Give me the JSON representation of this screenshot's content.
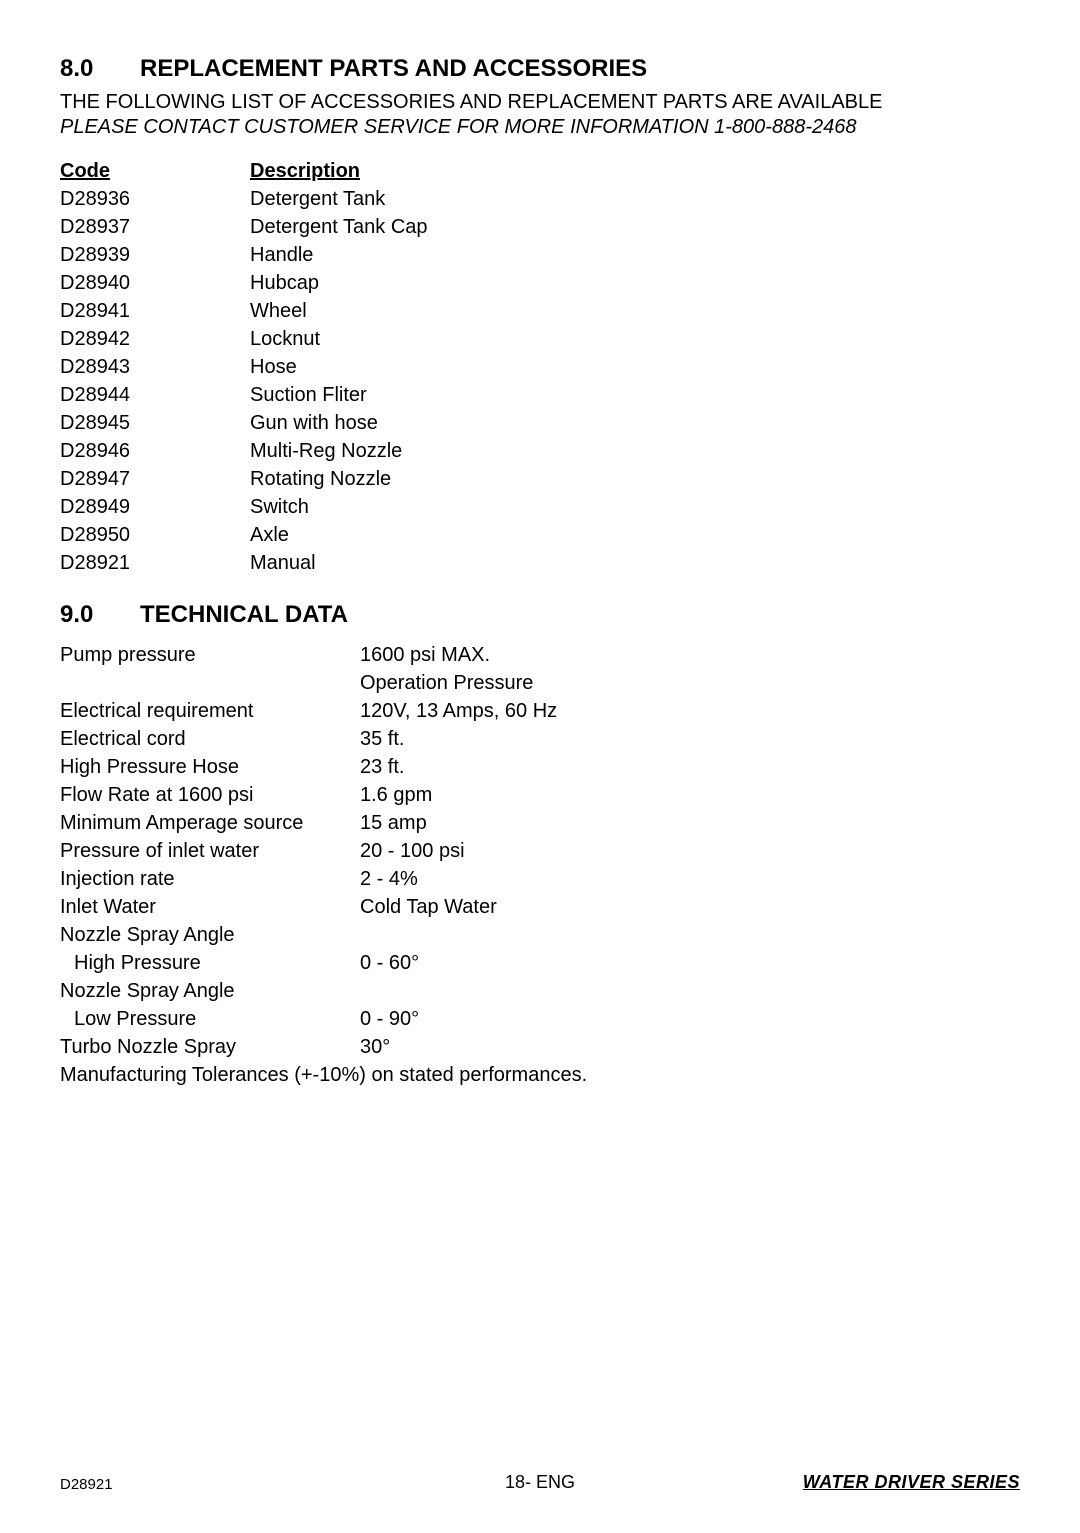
{
  "section8": {
    "number": "8.0",
    "title": "REPLACEMENT PARTS AND ACCESSORIES",
    "intro": "THE FOLLOWING LIST OF ACCESSORIES AND REPLACEMENT PARTS ARE AVAILABLE",
    "contact": "PLEASE CONTACT CUSTOMER SERVICE FOR MORE INFORMATION 1-800-888-2468",
    "header_code": "Code",
    "header_desc": "Description",
    "parts": [
      {
        "code": "D28936",
        "desc": "Detergent Tank"
      },
      {
        "code": "D28937",
        "desc": "Detergent Tank Cap"
      },
      {
        "code": "D28939",
        "desc": "Handle"
      },
      {
        "code": "D28940",
        "desc": "Hubcap"
      },
      {
        "code": "D28941",
        "desc": "Wheel"
      },
      {
        "code": "D28942",
        "desc": "Locknut"
      },
      {
        "code": "D28943",
        "desc": "Hose"
      },
      {
        "code": "D28944",
        "desc": "Suction Fliter"
      },
      {
        "code": "D28945",
        "desc": "Gun with hose"
      },
      {
        "code": "D28946",
        "desc": "Multi-Reg Nozzle"
      },
      {
        "code": "D28947",
        "desc": "Rotating Nozzle"
      },
      {
        "code": "D28949",
        "desc": "Switch"
      },
      {
        "code": "D28950",
        "desc": "Axle"
      },
      {
        "code": "D28921",
        "desc": "Manual"
      }
    ]
  },
  "section9": {
    "number": "9.0",
    "title": "TECHNICAL DATA",
    "rows": [
      {
        "label": "Pump pressure",
        "value": "1600 psi MAX.",
        "indent": false
      },
      {
        "label": "",
        "value": "Operation Pressure",
        "indent": false
      },
      {
        "label": "Electrical requirement",
        "value": "120V, 13 Amps, 60 Hz",
        "indent": false
      },
      {
        "label": "Electrical cord",
        "value": "35 ft.",
        "indent": false
      },
      {
        "label": "High Pressure Hose",
        "value": "23 ft.",
        "indent": false
      },
      {
        "label": "Flow Rate at 1600 psi",
        "value": "1.6 gpm",
        "indent": false
      },
      {
        "label": "Minimum Amperage source",
        "value": "15 amp",
        "indent": false
      },
      {
        "label": "Pressure of inlet water",
        "value": "20 - 100 psi",
        "indent": false
      },
      {
        "label": "Injection rate",
        "value": "2 - 4%",
        "indent": false
      },
      {
        "label": "Inlet Water",
        "value": "Cold Tap Water",
        "indent": false
      },
      {
        "label": "Nozzle Spray Angle",
        "value": "",
        "indent": false
      },
      {
        "label": "High Pressure",
        "value": "0 - 60°",
        "indent": true
      },
      {
        "label": "Nozzle Spray Angle",
        "value": "",
        "indent": false
      },
      {
        "label": "Low Pressure",
        "value": "0 - 90°",
        "indent": true
      },
      {
        "label": "Turbo Nozzle Spray",
        "value": "30°",
        "indent": false
      }
    ],
    "tolerance": "Manufacturing Tolerances (+-10%) on stated performances."
  },
  "footer": {
    "left": "D28921",
    "center": "18- ENG",
    "right": "WATER DRIVER SERIES"
  }
}
